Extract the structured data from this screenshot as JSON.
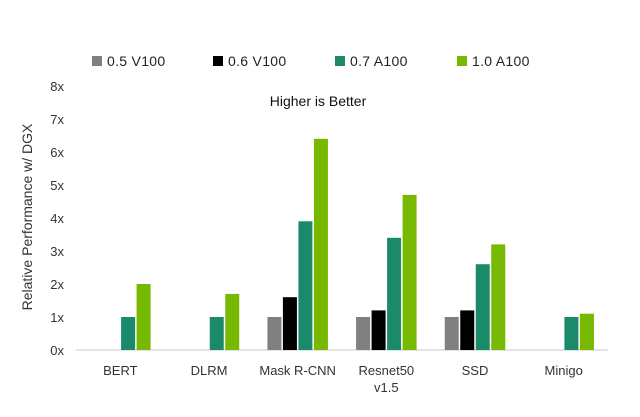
{
  "chart_data": {
    "type": "bar",
    "categories": [
      [
        "BERT"
      ],
      [
        "DLRM"
      ],
      [
        "Mask R-CNN"
      ],
      [
        "Resnet50",
        "v1.5"
      ],
      [
        "SSD"
      ],
      [
        "Minigo"
      ]
    ],
    "series": [
      {
        "name": "0.5 V100",
        "color": "#808080",
        "values": [
          null,
          null,
          1.0,
          1.0,
          1.0,
          null
        ]
      },
      {
        "name": "0.6 V100",
        "color": "#000000",
        "values": [
          null,
          null,
          1.6,
          1.2,
          1.2,
          null
        ]
      },
      {
        "name": "0.7 A100",
        "color": "#1b8a6b",
        "values": [
          1.0,
          1.0,
          3.9,
          3.4,
          2.6,
          1.0
        ]
      },
      {
        "name": "1.0 A100",
        "color": "#76b900",
        "values": [
          2.0,
          1.7,
          6.4,
          4.7,
          3.2,
          1.1
        ]
      }
    ],
    "ylabel": "Relative Performance w/ DGX",
    "ylim": [
      0,
      8
    ],
    "yticks": [
      {
        "value": 0,
        "label": "0x"
      },
      {
        "value": 1,
        "label": "1x"
      },
      {
        "value": 2,
        "label": "2x"
      },
      {
        "value": 3,
        "label": "3x"
      },
      {
        "value": 4,
        "label": "4x"
      },
      {
        "value": 5,
        "label": "5x"
      },
      {
        "value": 6,
        "label": "6x"
      },
      {
        "value": 7,
        "label": "7x"
      },
      {
        "value": 8,
        "label": "8x"
      }
    ],
    "annotation": "Higher is Better",
    "legend_position": "top",
    "grid": false,
    "axis_color": "#c8c8c8"
  }
}
